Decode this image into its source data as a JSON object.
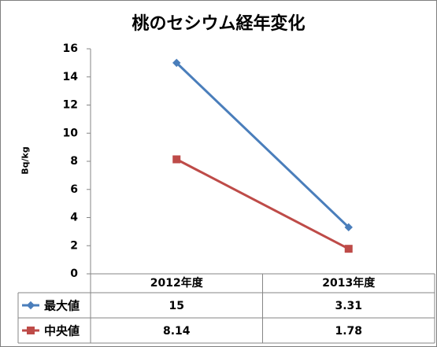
{
  "chart_data": {
    "type": "line",
    "title": "桃のセシウム経年変化",
    "ylabel": "Bq/kg",
    "xlabel": "",
    "categories": [
      "2012年度",
      "2013年度"
    ],
    "ylim": [
      0,
      16
    ],
    "yticks": [
      0,
      2,
      4,
      6,
      8,
      10,
      12,
      14,
      16
    ],
    "grid": false,
    "legend": "data-table",
    "series": [
      {
        "name": "最大値",
        "values": [
          15,
          3.31
        ],
        "labels": [
          "15",
          "3.31"
        ],
        "color": "#4a7ebb",
        "marker": "diamond"
      },
      {
        "name": "中央値",
        "values": [
          8.14,
          1.78
        ],
        "labels": [
          "8.14",
          "1.78"
        ],
        "color": "#be4b48",
        "marker": "square"
      }
    ]
  }
}
